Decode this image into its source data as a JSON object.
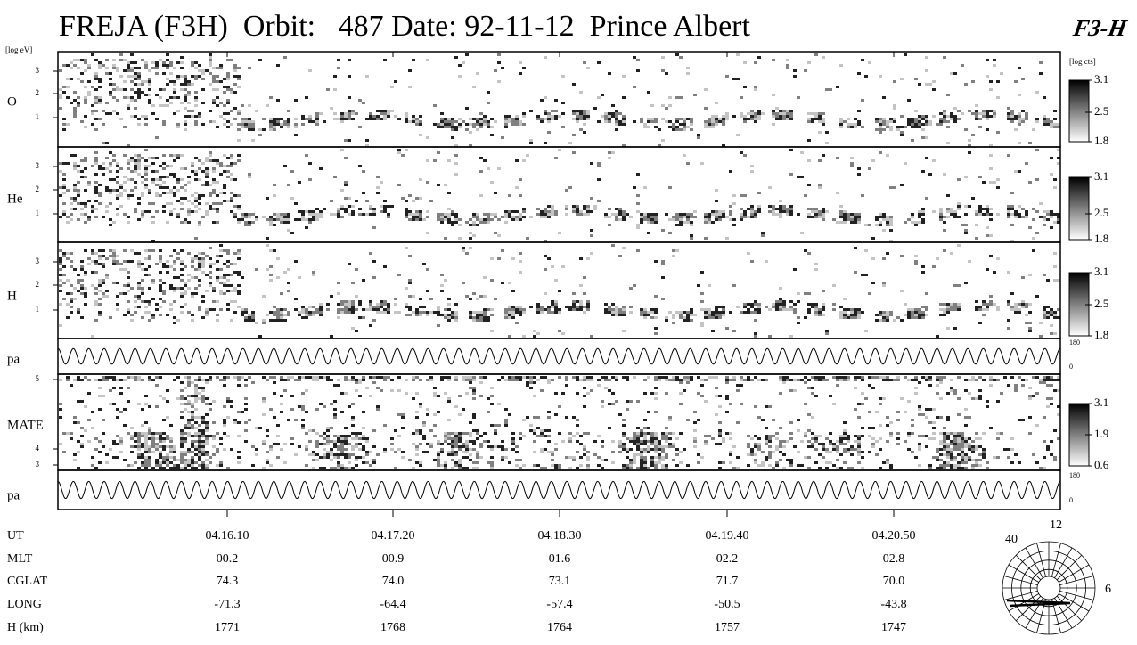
{
  "title": "FREJA (F3H)  Orbit:   487 Date: 92-11-12  Prince Albert",
  "logo": "F3-H",
  "y_unit": "[log eV]",
  "cbar_unit": "[log cts]",
  "panels": [
    {
      "label": "O",
      "yticks": [
        "3",
        "2",
        "1"
      ],
      "cbar": [
        "3.1",
        "2.5",
        "1.8"
      ]
    },
    {
      "label": "He",
      "yticks": [
        "3",
        "2",
        "1"
      ],
      "cbar": [
        "3.1",
        "2.5",
        "1.8"
      ]
    },
    {
      "label": "H",
      "yticks": [
        "3",
        "2",
        "1"
      ],
      "cbar": [
        "3.1",
        "2.5",
        "1.8"
      ]
    },
    {
      "label": "pa",
      "cbar": [
        "180",
        "0"
      ]
    },
    {
      "label": "MATE",
      "yticks": [
        "5",
        "4",
        "3"
      ],
      "cbar": [
        "3.1",
        "1.9",
        "0.6"
      ]
    },
    {
      "label": "pa",
      "cbar": [
        "180",
        "0"
      ]
    }
  ],
  "table": {
    "rows": [
      [
        "UT",
        "04.16.10",
        "04.17.20",
        "04.18.30",
        "04.19.40",
        "04.20.50"
      ],
      [
        "MLT",
        "00.2",
        "00.9",
        "01.6",
        "02.2",
        "02.8"
      ],
      [
        "CGLAT",
        "74.3",
        "74.0",
        "73.1",
        "71.7",
        "70.0"
      ],
      [
        "LONG",
        "-71.3",
        "-64.4",
        "-57.4",
        "-50.5",
        "-43.8"
      ],
      [
        "H (km)",
        "1771",
        "1768",
        "1764",
        "1757",
        "1747"
      ]
    ]
  },
  "polar": {
    "labels": [
      "12",
      "40",
      "6"
    ]
  }
}
